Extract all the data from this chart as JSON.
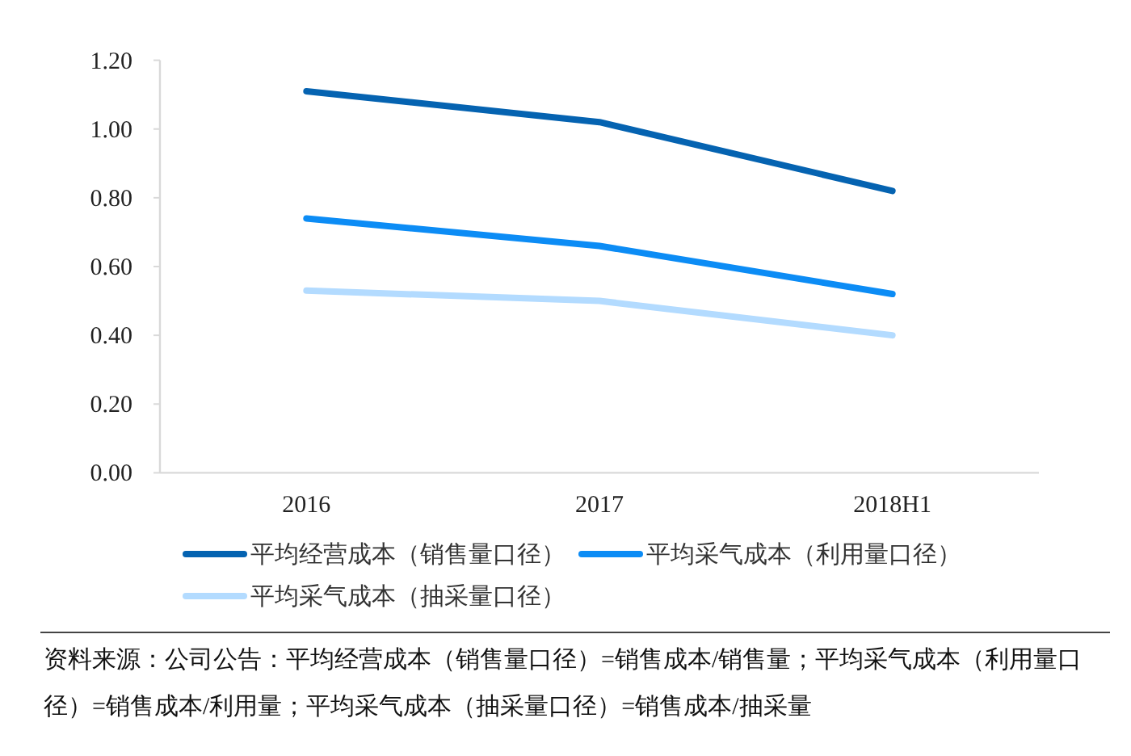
{
  "chart_data": {
    "type": "line",
    "categories": [
      "2016",
      "2017",
      "2018H1"
    ],
    "series": [
      {
        "name": "平均经营成本（销售量口径）",
        "color": "#0563b1",
        "values": [
          1.11,
          1.02,
          0.82
        ]
      },
      {
        "name": "平均采气成本（利用量口径）",
        "color": "#0c8cf5",
        "values": [
          0.74,
          0.66,
          0.52
        ]
      },
      {
        "name": "平均采气成本（抽采量口径）",
        "color": "#b3dbff",
        "values": [
          0.53,
          0.5,
          0.4
        ]
      }
    ],
    "ylim": [
      0,
      1.2
    ],
    "yticks": [
      {
        "value": 0,
        "label": "0.00"
      },
      {
        "value": 0.2,
        "label": "0.20"
      },
      {
        "value": 0.4,
        "label": "0.40"
      },
      {
        "value": 0.6,
        "label": "0.60"
      },
      {
        "value": 0.8,
        "label": "0.80"
      },
      {
        "value": 1,
        "label": "1.00"
      },
      {
        "value": 1.2,
        "label": "1.20"
      }
    ],
    "legend": "bottom",
    "annotations": [
      "资料来源：公司公告：平均经营成本（销售量口径）=销售成本/销售量；平均采气成本（利用量口径）=销售成本/利用量；平均采气成本（抽采量口径）=销售成本/抽采量"
    ]
  }
}
